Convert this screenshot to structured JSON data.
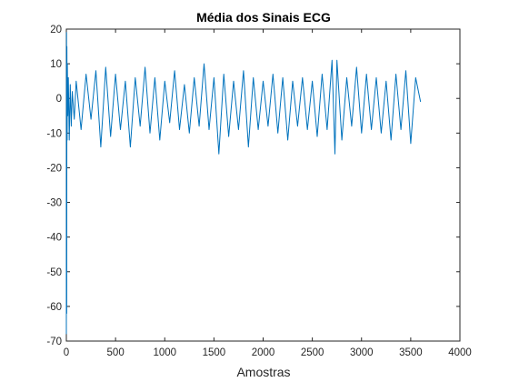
{
  "chart_data": {
    "type": "line",
    "title": "Média dos Sinais ECG",
    "xlabel": "Amostras",
    "ylabel": "",
    "xlim": [
      0,
      4000
    ],
    "ylim": [
      -70,
      20
    ],
    "xticks": [
      0,
      500,
      1000,
      1500,
      2000,
      2500,
      3000,
      3500,
      4000
    ],
    "yticks": [
      -70,
      -60,
      -50,
      -40,
      -30,
      -20,
      -10,
      0,
      10,
      20
    ],
    "grid": false,
    "color": "#0072BD",
    "series": [
      {
        "x": [
          0,
          2,
          4,
          6,
          8,
          10,
          15,
          20,
          30,
          40,
          50,
          60,
          80,
          100,
          150,
          200,
          250,
          300,
          350,
          400,
          450,
          500,
          550,
          600,
          650,
          700,
          750,
          800,
          850,
          900,
          950,
          1000,
          1050,
          1100,
          1150,
          1200,
          1250,
          1300,
          1350,
          1400,
          1450,
          1500,
          1550,
          1600,
          1650,
          1700,
          1750,
          1800,
          1850,
          1900,
          1950,
          2000,
          2050,
          2100,
          2150,
          2200,
          2250,
          2300,
          2350,
          2400,
          2450,
          2500,
          2550,
          2600,
          2650,
          2700,
          2730,
          2750,
          2800,
          2850,
          2900,
          2950,
          3000,
          3050,
          3100,
          3150,
          3200,
          3250,
          3300,
          3350,
          3400,
          3450,
          3500,
          3550,
          3600
        ],
        "y": [
          -68,
          19,
          -62,
          15,
          -12,
          10,
          -5,
          6,
          -12,
          4,
          -8,
          2,
          -6,
          5,
          -9,
          7,
          -6,
          8,
          -14,
          9,
          -11,
          7,
          -9,
          5,
          -14,
          6,
          -8,
          9,
          -10,
          6,
          -12,
          5,
          -7,
          8,
          -9,
          4,
          -10,
          6,
          -8,
          10,
          -9,
          6,
          -16,
          7,
          -11,
          5,
          -9,
          8,
          -14,
          6,
          -9,
          5,
          -8,
          7,
          -10,
          6,
          -12,
          5,
          -8,
          6,
          -9,
          5,
          -11,
          7,
          -9,
          11,
          -16,
          11,
          -12,
          6,
          -8,
          9,
          -10,
          7,
          -9,
          6,
          -10,
          5,
          -12,
          7,
          -9,
          8,
          -13,
          6,
          -1
        ]
      }
    ]
  }
}
